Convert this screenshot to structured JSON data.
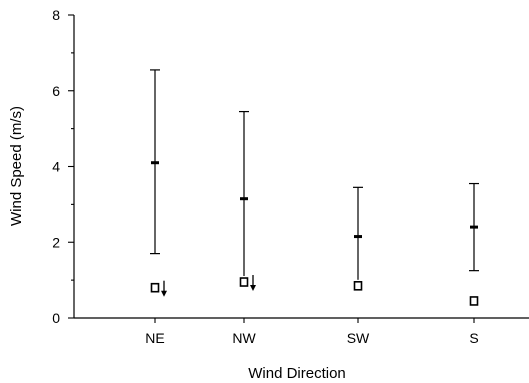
{
  "chart_data": {
    "type": "scatter",
    "xlabel": "Wind Direction",
    "ylabel": "Wind Speed (m/s)",
    "ylim": [
      0,
      8
    ],
    "yticks": [
      0,
      2,
      4,
      6,
      8
    ],
    "categories": [
      "NE",
      "NW",
      "SW",
      "S"
    ],
    "grid": false,
    "series": [
      {
        "kind": "mean",
        "values": [
          4.1,
          3.15,
          2.15,
          2.4
        ]
      },
      {
        "kind": "upper",
        "values": [
          6.55,
          5.45,
          3.45,
          3.55
        ]
      },
      {
        "kind": "lower",
        "values": [
          1.7,
          null,
          null,
          1.25
        ]
      },
      {
        "kind": "minimum",
        "values": [
          0.8,
          0.95,
          0.85,
          0.45
        ]
      }
    ],
    "arrows": [
      true,
      true,
      false,
      false
    ]
  }
}
